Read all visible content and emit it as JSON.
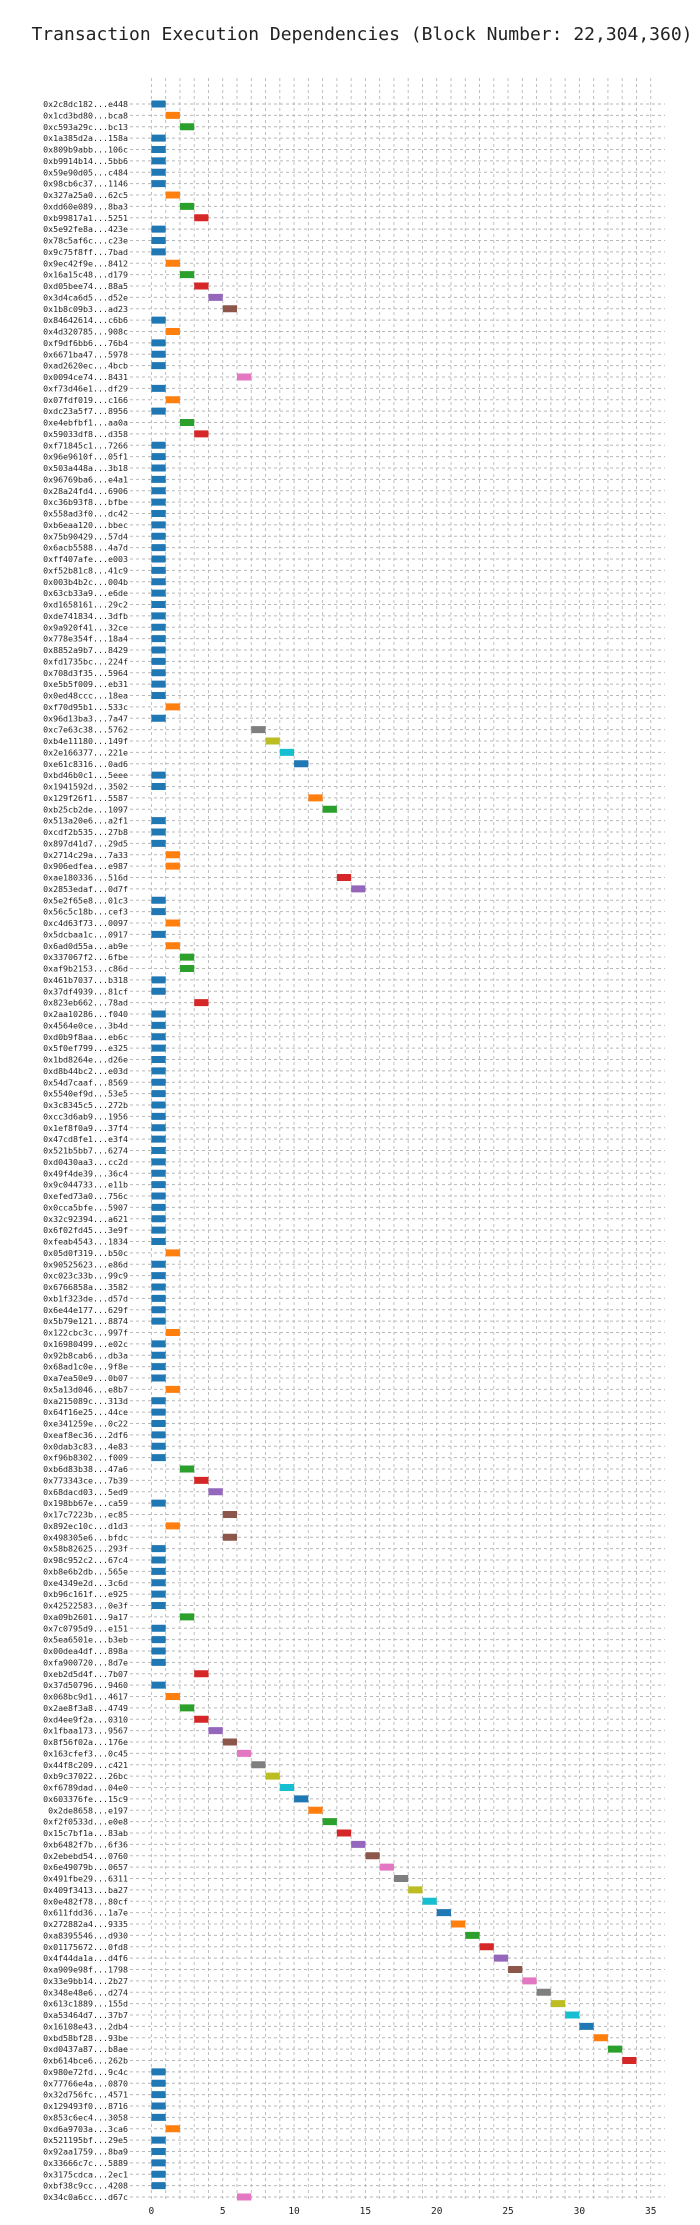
{
  "chart_data": {
    "type": "bar",
    "orientation": "horizontal",
    "title": "Transaction Execution Dependencies (Block Number: 22,304,360)",
    "xlabel": "",
    "ylabel": "",
    "xlim": [
      -1.5,
      36
    ],
    "xticks": [
      0,
      5,
      10,
      15,
      20,
      25,
      30,
      35
    ],
    "grid": true,
    "bar_width": 1,
    "colors": [
      "#1f77b4",
      "#ff7f0e",
      "#2ca02c",
      "#d62728",
      "#9467bd",
      "#8c564b",
      "#e377c2",
      "#7f7f7f",
      "#bcbd22",
      "#17becf"
    ],
    "transactions": [
      "0x2c8dc182...e448",
      "0x1cd3bd80...bca8",
      "0xc593a29c...bc13",
      "0x1a385d2a...158a",
      "0x809b9abb...106c",
      "0xb9914b14...5bb6",
      "0x59e90d05...c484",
      "0x98cb6c37...1146",
      "0x327a25a0...62c5",
      "0xdd60e089...8ba3",
      "0xb99817a1...5251",
      "0x5e92fe8a...423e",
      "0x78c5af6c...c23e",
      "0x9c75f8ff...7bad",
      "0x9ec42f9e...8412",
      "0x16a15c48...d179",
      "0xd05bee74...88a5",
      "0x3d4ca6d5...d52e",
      "0x1b8c09b3...ad23",
      "0x84642614...c6b6",
      "0x4d320785...908c",
      "0xf9df6bb6...76b4",
      "0x6671ba47...5978",
      "0xad2620ec...4bcb",
      "0x0094ce74...8431",
      "0xf73d46e1...df29",
      "0x07fdf019...c166",
      "0xdc23a5f7...8956",
      "0xe4ebfbf1...aa0a",
      "0x59033df8...d358",
      "0xf71845c1...7266",
      "0x96e9610f...05f1",
      "0x503a448a...3b18",
      "0x96769ba6...e4a1",
      "0x28a24fd4...6906",
      "0xc36b93f8...bfbe",
      "0x558ad3f0...dc42",
      "0xb6eaa120...bbec",
      "0x75b90429...57d4",
      "0x6acb5588...4a7d",
      "0xff407afe...e003",
      "0xf52b81c8...41c9",
      "0x003b4b2c...004b",
      "0x63cb33a9...e6de",
      "0xd1658161...29c2",
      "0xde741834...3dfb",
      "0x9a920f41...32ce",
      "0x778e354f...18a4",
      "0x8852a9b7...8429",
      "0xfd1735bc...224f",
      "0x708d3f35...5964",
      "0xe5b5f009...eb31",
      "0x0ed48ccc...18ea",
      "0xf70d95b1...533c",
      "0x96d13ba3...7a47",
      "0xc7e63c38...5762",
      "0xb4e11180...149f",
      "0x2e166377...221e",
      "0xe61c8316...0ad6",
      "0xbd46b0c1...5eee",
      "0x1941592d...3502",
      "0x129f26f1...5587",
      "0xb25cb2de...1097",
      "0x513a20e6...a2f1",
      "0xcdf2b535...27b8",
      "0x897d41d7...29d5",
      "0x2714c29a...7a33",
      "0x906edfea...e987",
      "0xae180336...516d",
      "0x2853edaf...0d7f",
      "0x5e2f65e8...01c3",
      "0x56c5c18b...cef3",
      "0xc4d63f73...0097",
      "0x5dcbaa1c...0917",
      "0x6ad0d55a...ab9e",
      "0x337067f2...6fbe",
      "0xaf9b2153...c86d",
      "0x461b7037...b318",
      "0x37df4939...81cf",
      "0x823eb662...78ad",
      "0x2aa10286...f040",
      "0x4564e0ce...3b4d",
      "0xd0b9f8aa...eb6c",
      "0x5f0ef799...e325",
      "0x1bd8264e...d26e",
      "0xd8b44bc2...e03d",
      "0x54d7caaf...8569",
      "0x5540ef9d...53e5",
      "0x3c8345c5...272b",
      "0xcc3d6ab9...1956",
      "0x1ef8f0a9...37f4",
      "0x47cd8fe1...e3f4",
      "0x521b5bb7...6274",
      "0xd0430aa3...cc2d",
      "0x49f4de39...36c4",
      "0x9c044733...e11b",
      "0xefed73a0...756c",
      "0x0cca5bfe...5907",
      "0x32c92394...a621",
      "0x6f02fd45...3e9f",
      "0xfeab4543...1834",
      "0x05d0f319...b50c",
      "0x90525623...e86d",
      "0xc023c33b...99c9",
      "0x6766858a...3582",
      "0xb1f323de...d57d",
      "0x6e44e177...629f",
      "0x5b79e121...8874",
      "0x122cbc3c...997f",
      "0x16980499...e02c",
      "0x92b8cab6...db3a",
      "0x68ad1c0e...9f8e",
      "0xa7ea50e9...0b07",
      "0x5a13d046...e8b7",
      "0xa215089c...313d",
      "0x64f16e25...44ce",
      "0xe341259e...0c22",
      "0xeaf8ec36...2df6",
      "0x0dab3c83...4e83",
      "0xf96b8302...f009",
      "0xb6d83b38...47a6",
      "0x773343ce...7b39",
      "0x68dacd03...5ed9",
      "0x198bb67e...ca59",
      "0x17c7223b...ec85",
      "0x892ec10c...d1d3",
      "0x498305e6...bfdc",
      "0x58b82625...293f",
      "0x98c952c2...67c4",
      "0xb8e6b2db...565e",
      "0xe4349e2d...3c6d",
      "0xb96c161f...e925",
      "0x42522583...0e3f",
      "0xa09b2601...9a17",
      "0x7c0795d9...e151",
      "0x5ea6501e...b3eb",
      "0x00dea4df...898a",
      "0xfa900720...8d7e",
      "0xeb2d5d4f...7b07",
      "0x37d50796...9460",
      "0x068bc9d1...4617",
      "0x2ae8f3a8...4749",
      "0xd4ee9f2a...0310",
      "0x1fbaa173...9567",
      "0x8f56f02a...176e",
      "0x163cfef3...0c45",
      "0x44f8c209...c421",
      "0xb9c37022...26bc",
      "0xf6789dad...04e0",
      "0x603376fe...15c9",
      "0x2de8658...e197",
      "0xf2f0533d...e0e8",
      "0x15c7bf1a...83ab",
      "0xb6482f7b...6f36",
      "0x2ebebd54...0760",
      "0x6e49079b...0657",
      "0x491fbe29...6311",
      "0x409f3413...ba27",
      "0x0e482f78...80cf",
      "0x611fdd36...1a7e",
      "0x272882a4...9335",
      "0xa8395546...d930",
      "0x01175672...0fd8",
      "0x4f44da1a...d4f6",
      "0xa909e98f...1798",
      "0x33e9bb14...2b27",
      "0x348e48e6...d274",
      "0x613c1889...155d",
      "0xa53464d7...37b7",
      "0x16108e43...2db4",
      "0xbd58bf28...93be",
      "0xd0437a87...b8ae",
      "0xb614bce6...262b",
      "0x980e72fd...9c4c",
      "0x77766e4a...0870",
      "0x32d756fc...4571",
      "0x129493f0...8716",
      "0x853c6ec4...3058",
      "0xd6a9703a...3ca6",
      "0x521195bf...29e5",
      "0x92aa1759...8ba9",
      "0x33666c7c...5889",
      "0x3175cdca...2ec1",
      "0xbf38c9cc...4208",
      "0x34c0a6cc...d67c"
    ],
    "start_times": [
      0,
      1,
      2,
      0,
      0,
      0,
      0,
      0,
      1,
      2,
      3,
      0,
      0,
      0,
      1,
      2,
      3,
      4,
      5,
      0,
      1,
      0,
      0,
      0,
      6,
      0,
      1,
      0,
      2,
      3,
      0,
      0,
      0,
      0,
      0,
      0,
      0,
      0,
      0,
      0,
      0,
      0,
      0,
      0,
      0,
      0,
      0,
      0,
      0,
      0,
      0,
      0,
      0,
      1,
      0,
      7,
      8,
      9,
      10,
      0,
      0,
      11,
      12,
      0,
      0,
      0,
      1,
      1,
      13,
      14,
      0,
      0,
      1,
      0,
      1,
      2,
      2,
      0,
      0,
      3,
      0,
      0,
      0,
      0,
      0,
      0,
      0,
      0,
      0,
      0,
      0,
      0,
      0,
      0,
      0,
      0,
      0,
      0,
      0,
      0,
      0,
      1,
      0,
      0,
      0,
      0,
      0,
      0,
      1,
      0,
      0,
      0,
      0,
      1,
      0,
      0,
      0,
      0,
      0,
      0,
      2,
      3,
      4,
      0,
      5,
      1,
      5,
      0,
      0,
      0,
      0,
      0,
      0,
      2,
      0,
      0,
      0,
      0,
      3,
      0,
      1,
      2,
      3,
      4,
      5,
      6,
      7,
      8,
      9,
      10,
      11,
      12,
      13,
      14,
      15,
      16,
      17,
      18,
      19,
      20,
      21,
      22,
      23,
      24,
      25,
      26,
      27,
      28,
      29,
      30,
      31,
      32,
      33,
      0,
      0,
      0,
      0,
      0,
      1,
      0,
      0,
      0,
      0,
      0,
      6
    ]
  }
}
